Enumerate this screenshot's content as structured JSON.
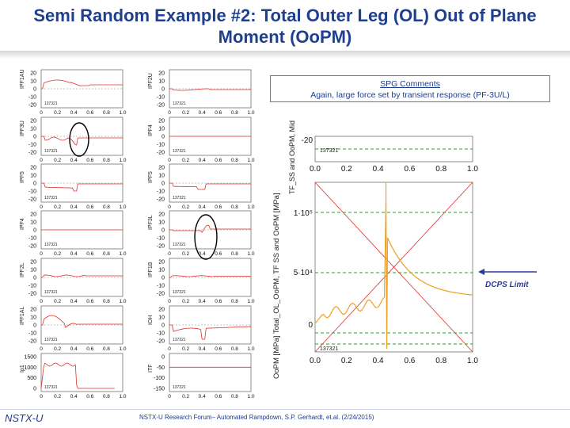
{
  "title": {
    "line1": "Semi Random Example #2: Total Outer Leg (OL) Out of Plane",
    "line2": "Moment (OoPM)"
  },
  "spg": {
    "heading": "SPG Comments",
    "text": "Again, large force set by transient response (PF-3U/L)"
  },
  "dcps_label": "DCPS Limit",
  "footer": {
    "logo": "NSTX-U",
    "text": "NSTX-U Research Forum– Automated Rampdown, S.P. Gerhardt, et.al. (2/24/2015)"
  },
  "shot": "137321",
  "left_col_labels": [
    "IPF1AU",
    "IPF3U",
    "IPF5",
    "IPF4",
    "IPF2L",
    "IPF1AL",
    "Ip1"
  ],
  "mid_col_labels": [
    "IPF2U",
    "IPF4",
    "IPF5",
    "IPF3L",
    "IPF1B",
    "IOH",
    "ITF"
  ],
  "panel_y_ticks": [
    "20",
    "10",
    "0",
    "-10",
    "-20"
  ],
  "ip_y_ticks": [
    "1500",
    "1000",
    "500",
    "0"
  ],
  "itf_y_ticks": [
    "0",
    "-50",
    "-100",
    "-150"
  ],
  "x_ticks": [
    "0",
    "0.2",
    "0.4",
    "0.6",
    "0.8",
    "1.0"
  ],
  "right_top_y_label": "TF_SS and OoPM, Mid",
  "right_top_y_tick": "-20",
  "right_top_x_ticks": [
    "0.0",
    "0.2",
    "0.4",
    "0.6",
    "0.8",
    "1.0"
  ],
  "right_main_y_label": "OoPM [MPa]   Total_OL_OoPM, TF SS and OoPM [MPa]",
  "right_main_y_ticks": [
    "1·10⁵",
    "5·10⁴",
    "0"
  ],
  "right_main_x_ticks": [
    "0.0",
    "0.2",
    "0.4",
    "0.6",
    "0.8",
    "1.0"
  ],
  "colors": {
    "title": "#1f3f8f",
    "trace": "#e0302a",
    "orange": "#f0a020",
    "limit": "#2aa02a",
    "circle": "#000000"
  }
}
